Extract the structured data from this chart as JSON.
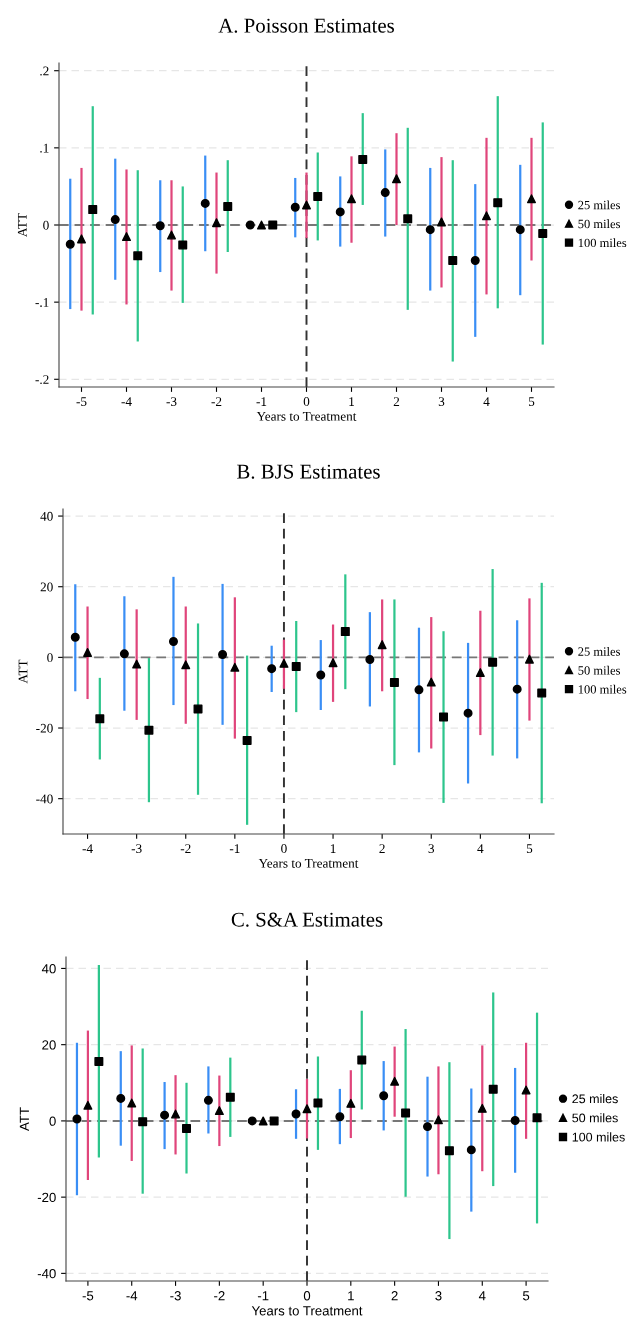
{
  "chart_data": [
    {
      "type": "scatter",
      "title": "A. Poisson Estimates",
      "xlabel": "Years to Treatment",
      "ylabel": "ATT",
      "xlim": [
        -5.5,
        5.5
      ],
      "ylim": [
        -0.21,
        0.21
      ],
      "xticks": [
        -5,
        -4,
        -3,
        -2,
        -1,
        0,
        1,
        2,
        3,
        4,
        5
      ],
      "yticks": [
        {
          "value": -0.2,
          "label": "-.2"
        },
        {
          "value": -0.1,
          "label": "-.1"
        },
        0,
        {
          "value": 0.1,
          "label": ".1"
        },
        {
          "value": 0.2,
          "label": ".2"
        }
      ],
      "grid": "y",
      "legend": "right",
      "ref_lines": [
        {
          "axis": "y",
          "value": 0,
          "color": "#777777",
          "line_style": "dashed"
        },
        {
          "axis": "x",
          "value": 0,
          "color": "#333333",
          "line_style": "dashed"
        }
      ],
      "series": [
        {
          "name": "25 miles",
          "color": "#000000",
          "marker": "circle",
          "x": [
            -5.25,
            -4.25,
            -3.25,
            -2.25,
            -1.25,
            -0.25,
            0.75,
            1.75,
            2.75,
            3.75,
            4.75
          ],
          "values": [
            -0.025,
            0.007,
            -0.001,
            0.028,
            0,
            0.023,
            0.017,
            0.042,
            -0.006,
            -0.046,
            -0.006
          ],
          "errors": [
            [
              -0.109,
              0.06
            ],
            [
              -0.071,
              0.086
            ],
            [
              -0.061,
              0.058
            ],
            [
              -0.034,
              0.09
            ],
            null,
            [
              -0.016,
              0.061
            ],
            [
              -0.028,
              0.063
            ],
            [
              -0.015,
              0.098
            ],
            [
              -0.085,
              0.074
            ],
            [
              -0.145,
              0.053
            ],
            [
              -0.091,
              0.078
            ]
          ]
        },
        {
          "name": "50 miles",
          "color": "#000000",
          "marker": "triangle",
          "x": [
            -5,
            -4,
            -3,
            -2,
            -1,
            0,
            1,
            2,
            3,
            4,
            5
          ],
          "values": [
            -0.018,
            -0.015,
            -0.013,
            0.003,
            0,
            0.026,
            0.034,
            0.06,
            0.004,
            0.012,
            0.034
          ],
          "errors": [
            [
              -0.111,
              0.074
            ],
            [
              -0.103,
              0.072
            ],
            [
              -0.085,
              0.058
            ],
            [
              -0.063,
              0.068
            ],
            null,
            [
              -0.017,
              0.068
            ],
            [
              -0.023,
              0.089
            ],
            [
              0.0,
              0.119
            ],
            [
              -0.081,
              0.088
            ],
            [
              -0.09,
              0.113
            ],
            [
              -0.046,
              0.113
            ]
          ]
        },
        {
          "name": "100 miles",
          "color": "#000000",
          "marker": "square",
          "x": [
            -4.75,
            -3.75,
            -2.75,
            -1.75,
            -0.75,
            0.25,
            1.25,
            2.25,
            3.25,
            4.25,
            5.25
          ],
          "values": [
            0.02,
            -0.04,
            -0.026,
            0.024,
            0,
            0.037,
            0.085,
            0.008,
            -0.046,
            0.029,
            -0.011
          ],
          "errors": [
            [
              -0.116,
              0.154
            ],
            [
              -0.151,
              0.071
            ],
            [
              -0.101,
              0.05
            ],
            [
              -0.035,
              0.084
            ],
            null,
            [
              -0.02,
              0.094
            ],
            [
              0.026,
              0.145
            ],
            [
              -0.11,
              0.126
            ],
            [
              -0.177,
              0.084
            ],
            [
              -0.108,
              0.167
            ],
            [
              -0.155,
              0.133
            ]
          ]
        }
      ]
    },
    {
      "type": "scatter",
      "title": "B. BJS Estimates",
      "xlabel": "Years to Treatment",
      "ylabel": "ATT",
      "xlim": [
        -4.5,
        5.5
      ],
      "ylim": [
        -50,
        42
      ],
      "xticks": [
        -4,
        -3,
        -2,
        -1,
        0,
        1,
        2,
        3,
        4,
        5
      ],
      "yticks": [
        -40,
        -20,
        0,
        20,
        40
      ],
      "grid": "y",
      "legend": "right",
      "ref_lines": [
        {
          "axis": "y",
          "value": 0,
          "color": "#777777",
          "line_style": "dashed"
        },
        {
          "axis": "x",
          "value": 0,
          "color": "#333333",
          "line_style": "dashed"
        }
      ],
      "series": [
        {
          "name": "25 miles",
          "color": "#000000",
          "marker": "circle",
          "x": [
            -4.25,
            -3.25,
            -2.25,
            -1.25,
            -0.25,
            0.75,
            1.75,
            2.75,
            3.75,
            4.75
          ],
          "values": [
            5.7,
            1.0,
            4.5,
            0.8,
            -3.2,
            -5.0,
            -0.6,
            -9.2,
            -15.8,
            -9.0
          ],
          "errors": [
            [
              -9.6,
              20.7
            ],
            [
              -15.1,
              17.3
            ],
            [
              -13.5,
              22.8
            ],
            [
              -19.1,
              20.8
            ],
            [
              -9.8,
              3.3
            ],
            [
              -14.9,
              4.9
            ],
            [
              -13.9,
              12.8
            ],
            [
              -26.9,
              8.4
            ],
            [
              -35.7,
              4.1
            ],
            [
              -28.6,
              10.5
            ]
          ]
        },
        {
          "name": "50 miles",
          "color": "#000000",
          "marker": "triangle",
          "x": [
            -4,
            -3,
            -2,
            -1,
            0,
            1,
            2,
            3,
            4,
            5
          ],
          "values": [
            1.4,
            -1.9,
            -2.1,
            -2.8,
            -1.7,
            -1.5,
            3.6,
            -7.0,
            -4.3,
            -0.5
          ],
          "errors": [
            [
              -11.8,
              14.4
            ],
            [
              -17.7,
              13.6
            ],
            [
              -18.8,
              14.4
            ],
            [
              -23.0,
              17.0
            ],
            [
              -8.9,
              5.0
            ],
            [
              -12.6,
              9.3
            ],
            [
              -9.6,
              16.4
            ],
            [
              -25.8,
              11.4
            ],
            [
              -22.0,
              13.2
            ],
            [
              -17.9,
              16.7
            ]
          ]
        },
        {
          "name": "100 miles",
          "color": "#000000",
          "marker": "square",
          "x": [
            -3.75,
            -2.75,
            -1.75,
            -0.75,
            0.25,
            1.25,
            2.25,
            3.25,
            4.25,
            5.25
          ],
          "values": [
            -17.4,
            -20.6,
            -14.6,
            -23.5,
            -2.6,
            7.3,
            -7.1,
            -16.9,
            -1.4,
            -10.1
          ],
          "errors": [
            [
              -28.9,
              -5.8
            ],
            [
              -41.0,
              -0.2
            ],
            [
              -38.9,
              9.6
            ],
            [
              -47.4,
              0.5
            ],
            [
              -15.5,
              10.3
            ],
            [
              -9.0,
              23.5
            ],
            [
              -30.5,
              16.4
            ],
            [
              -41.2,
              7.4
            ],
            [
              -27.8,
              25.0
            ],
            [
              -41.3,
              21.1
            ]
          ]
        }
      ]
    },
    {
      "type": "scatter",
      "title": "C. S&A Estimates",
      "xlabel": "Years to Treatment",
      "ylabel": "ATT",
      "xlim": [
        -5.5,
        5.5
      ],
      "ylim": [
        -42,
        43
      ],
      "xticks": [
        -5,
        -4,
        -3,
        -2,
        -1,
        0,
        1,
        2,
        3,
        4,
        5
      ],
      "yticks": [
        -40,
        -20,
        0,
        20,
        40
      ],
      "grid": "y",
      "legend": "right",
      "ref_lines": [
        {
          "axis": "y",
          "value": 0,
          "color": "#777777",
          "line_style": "dashed"
        },
        {
          "axis": "x",
          "value": 0,
          "color": "#333333",
          "line_style": "dashed"
        }
      ],
      "series": [
        {
          "name": "25 miles",
          "color": "#000000",
          "marker": "circle",
          "x": [
            -5.25,
            -4.25,
            -3.25,
            -2.25,
            -1.25,
            -0.25,
            0.75,
            1.75,
            2.75,
            3.75,
            4.75
          ],
          "values": [
            0.5,
            5.9,
            1.5,
            5.4,
            0,
            1.8,
            1.1,
            6.6,
            -1.5,
            -7.6,
            0.1
          ],
          "errors": [
            [
              -19.5,
              20.5
            ],
            [
              -6.5,
              18.3
            ],
            [
              -7.4,
              10.2
            ],
            [
              -3.3,
              14.3
            ],
            null,
            [
              -4.7,
              8.3
            ],
            [
              -6.1,
              8.4
            ],
            [
              -2.5,
              15.7
            ],
            [
              -14.6,
              11.6
            ],
            [
              -23.8,
              8.5
            ],
            [
              -13.6,
              13.9
            ]
          ]
        },
        {
          "name": "50 miles",
          "color": "#000000",
          "marker": "triangle",
          "x": [
            -5,
            -4,
            -3,
            -2,
            -1,
            0,
            1,
            2,
            3,
            4,
            5
          ],
          "values": [
            4.1,
            4.7,
            1.8,
            2.7,
            0,
            3.2,
            4.6,
            10.4,
            0.3,
            3.3,
            8.1
          ],
          "errors": [
            [
              -15.5,
              23.7
            ],
            [
              -10.5,
              19.8
            ],
            [
              -8.8,
              12.0
            ],
            [
              -6.6,
              11.9
            ],
            null,
            [
              -4.6,
              11.0
            ],
            [
              -4.5,
              13.3
            ],
            [
              1.1,
              19.5
            ],
            [
              -14.0,
              14.3
            ],
            [
              -13.2,
              19.8
            ],
            [
              -4.7,
              20.5
            ]
          ]
        },
        {
          "name": "100 miles",
          "color": "#000000",
          "marker": "square",
          "x": [
            -4.75,
            -3.75,
            -2.75,
            -1.75,
            -0.75,
            0.25,
            1.25,
            2.25,
            3.25,
            4.25,
            5.25
          ],
          "values": [
            15.6,
            -0.2,
            -2.0,
            6.2,
            0,
            4.7,
            16.0,
            2.1,
            -7.8,
            8.3,
            0.8
          ],
          "errors": [
            [
              -9.6,
              40.9
            ],
            [
              -19.1,
              19.0
            ],
            [
              -13.8,
              10.0
            ],
            [
              -4.2,
              16.6
            ],
            null,
            [
              -7.6,
              16.9
            ],
            [
              3.0,
              28.9
            ],
            [
              -19.9,
              24.1
            ],
            [
              -31.0,
              15.4
            ],
            [
              -17.1,
              33.7
            ],
            [
              -26.9,
              28.4
            ]
          ]
        }
      ]
    }
  ]
}
